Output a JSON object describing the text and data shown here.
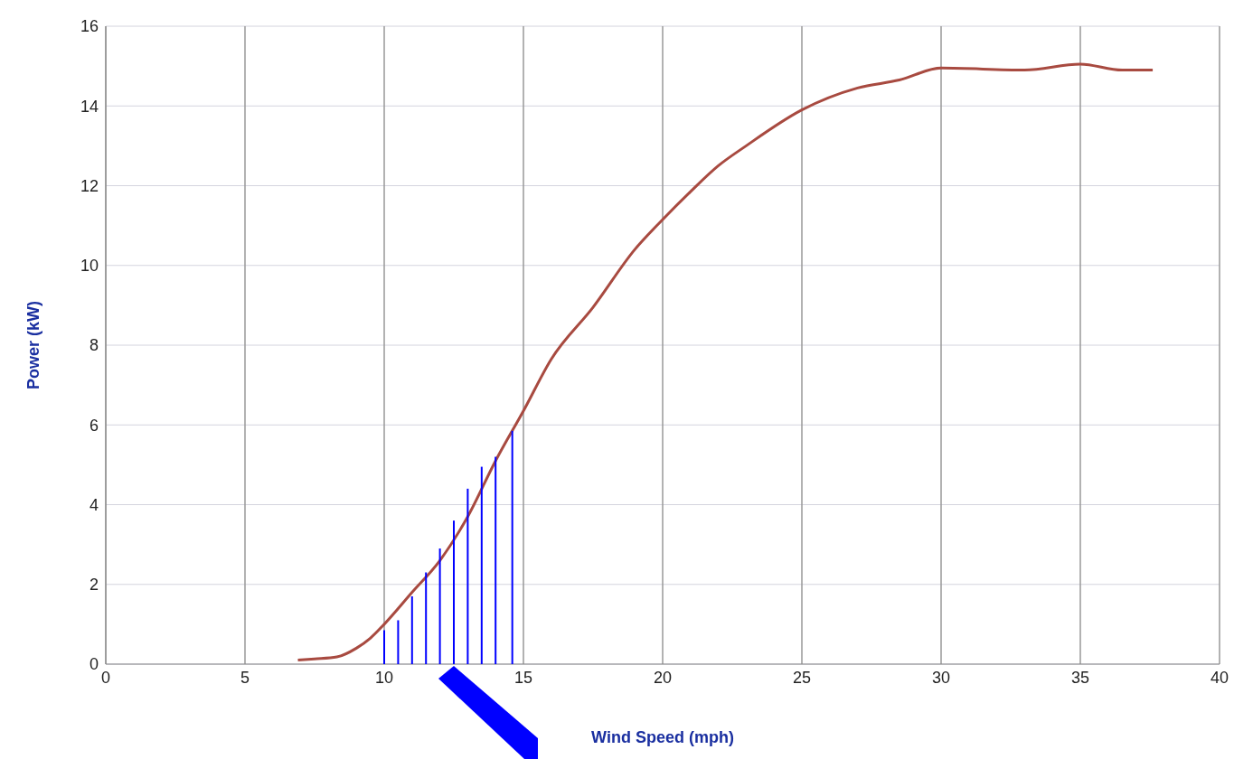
{
  "chart_data": {
    "type": "line",
    "xlabel": "Wind Speed (mph)",
    "ylabel": "Power  (kW)",
    "xlim": [
      0,
      40
    ],
    "xticks": [
      0,
      5,
      10,
      15,
      20,
      25,
      30,
      35,
      40
    ],
    "ylim": [
      0,
      16
    ],
    "yticks": [
      0,
      2,
      4,
      6,
      8,
      10,
      12,
      14,
      16
    ],
    "grid": true,
    "marker": "none",
    "line_style": "solid",
    "series": [
      {
        "color": "#a84a40",
        "x": [
          6.9,
          7.5,
          8.3,
          9,
          9.5,
          10,
          11,
          12,
          13,
          14,
          15,
          16,
          17.5,
          19,
          20,
          21,
          22,
          23,
          25,
          27,
          28.5,
          30,
          33,
          35,
          36.5,
          37.6
        ],
        "values": [
          0.1,
          0.13,
          0.18,
          0.4,
          0.65,
          1.0,
          1.8,
          2.6,
          3.7,
          5.1,
          6.35,
          7.65,
          8.95,
          10.4,
          11.15,
          11.85,
          12.5,
          13.0,
          13.9,
          14.45,
          14.65,
          14.95,
          14.9,
          15.05,
          14.9,
          14.9
        ]
      },
      {
        "type": "bar",
        "color": "#0000ff",
        "x": [
          10,
          10.5,
          11,
          11.5,
          12,
          12.5,
          13,
          13.5,
          14,
          14.6
        ],
        "values": [
          0.85,
          1.1,
          1.7,
          2.3,
          2.9,
          3.6,
          4.4,
          4.95,
          5.2,
          5.85
        ]
      }
    ]
  }
}
